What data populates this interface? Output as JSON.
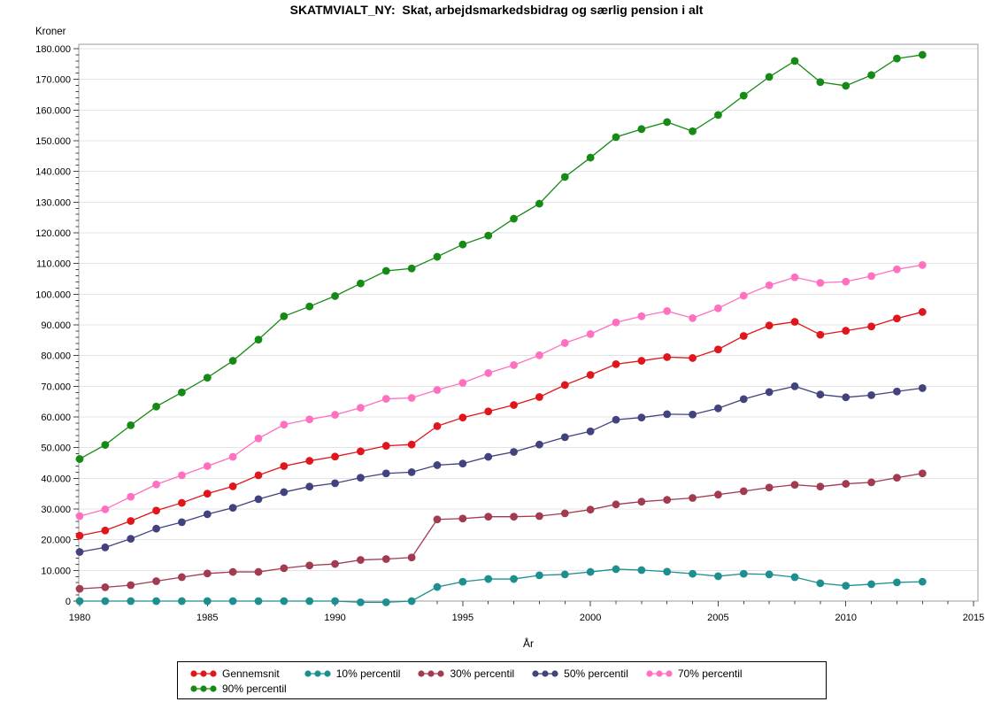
{
  "title": "SKATMVIALT_NY:  Skat, arbejdsmarkedsbidrag og særlig pension i alt",
  "chart_data": {
    "type": "line",
    "title": "SKATMVIALT_NY:  Skat, arbejdsmarkedsbidrag og særlig pension i alt",
    "xlabel": "År",
    "ylabel": "Kroner",
    "xlim": [
      1980,
      2015
    ],
    "ylim": [
      0,
      180000
    ],
    "grid": "horizontal-major",
    "legend_position": "bottom",
    "xticks": [
      1980,
      1985,
      1990,
      1995,
      2000,
      2005,
      2010,
      2015
    ],
    "x_minor_step": 1,
    "y_minor_step": 2000,
    "yticks": [
      [
        0,
        "0"
      ],
      [
        10000,
        "10.000"
      ],
      [
        20000,
        "20.000"
      ],
      [
        30000,
        "30.000"
      ],
      [
        40000,
        "40.000"
      ],
      [
        50000,
        "50.000"
      ],
      [
        60000,
        "60.000"
      ],
      [
        70000,
        "70.000"
      ],
      [
        80000,
        "80.000"
      ],
      [
        90000,
        "90.000"
      ],
      [
        100000,
        "100.000"
      ],
      [
        110000,
        "110.000"
      ],
      [
        120000,
        "120.000"
      ],
      [
        130000,
        "130.000"
      ],
      [
        140000,
        "140.000"
      ],
      [
        150000,
        "150.000"
      ],
      [
        160000,
        "160.000"
      ],
      [
        170000,
        "170.000"
      ],
      [
        180000,
        "180.000"
      ]
    ],
    "x": [
      1980,
      1981,
      1982,
      1983,
      1984,
      1985,
      1986,
      1987,
      1988,
      1989,
      1990,
      1991,
      1992,
      1993,
      1994,
      1995,
      1996,
      1997,
      1998,
      1999,
      2000,
      2001,
      2002,
      2003,
      2004,
      2005,
      2006,
      2007,
      2008,
      2009,
      2010,
      2011,
      2012,
      2013
    ],
    "series": [
      {
        "name": "Gennemsnit",
        "color": "#E0161C",
        "values": [
          21300,
          23000,
          26100,
          29500,
          32000,
          35000,
          37400,
          41000,
          44000,
          45700,
          47100,
          48800,
          50600,
          51000,
          57000,
          59800,
          61800,
          63900,
          66500,
          70400,
          73700,
          77200,
          78300,
          79500,
          79200,
          82000,
          86400,
          89800,
          91000,
          86800,
          88100,
          89500,
          92100,
          94200
        ]
      },
      {
        "name": "10% percentil",
        "color": "#1E8F8F",
        "values": [
          0,
          0,
          0,
          0,
          0,
          0,
          0,
          0,
          0,
          0,
          0,
          -400,
          -400,
          0,
          4600,
          6300,
          7200,
          7200,
          8400,
          8700,
          9500,
          10400,
          10100,
          9600,
          8900,
          8100,
          8900,
          8700,
          7800,
          5800,
          5000,
          5500,
          6100,
          6300
        ]
      },
      {
        "name": "30% percentil",
        "color": "#A23A50",
        "values": [
          4000,
          4500,
          5200,
          6500,
          7800,
          9000,
          9500,
          9500,
          10700,
          11600,
          12100,
          13400,
          13700,
          14200,
          26600,
          26900,
          27500,
          27500,
          27700,
          28600,
          29800,
          31500,
          32400,
          33000,
          33600,
          34700,
          35800,
          37000,
          37900,
          37300,
          38200,
          38700,
          40200,
          41600
        ]
      },
      {
        "name": "50% percentil",
        "color": "#42427E",
        "values": [
          16000,
          17500,
          20300,
          23600,
          25700,
          28300,
          30400,
          33200,
          35500,
          37300,
          38400,
          40200,
          41600,
          42000,
          44300,
          44800,
          47000,
          48600,
          51000,
          53400,
          55300,
          59100,
          59800,
          60900,
          60800,
          62800,
          65800,
          68100,
          70000,
          67300,
          66400,
          67100,
          68300,
          69400
        ]
      },
      {
        "name": "70% percentil",
        "color": "#FF70C0",
        "values": [
          27700,
          29900,
          34000,
          38000,
          41000,
          44000,
          47000,
          53000,
          57500,
          59200,
          60700,
          63000,
          65900,
          66200,
          68800,
          71100,
          74300,
          76900,
          80100,
          84100,
          87000,
          90800,
          92800,
          94500,
          92200,
          95400,
          99500,
          102900,
          105500,
          103700,
          104100,
          105900,
          108100,
          109500
        ]
      },
      {
        "name": "90% percentil",
        "color": "#158A15",
        "values": [
          46300,
          50900,
          57300,
          63400,
          68000,
          72800,
          78300,
          85200,
          92800,
          96000,
          99400,
          103500,
          107600,
          108400,
          112200,
          116200,
          119100,
          124600,
          129500,
          138200,
          144500,
          151200,
          153800,
          156100,
          153100,
          158400,
          164700,
          170800,
          176000,
          169100,
          167900,
          171400,
          176800,
          178000
        ]
      }
    ]
  }
}
